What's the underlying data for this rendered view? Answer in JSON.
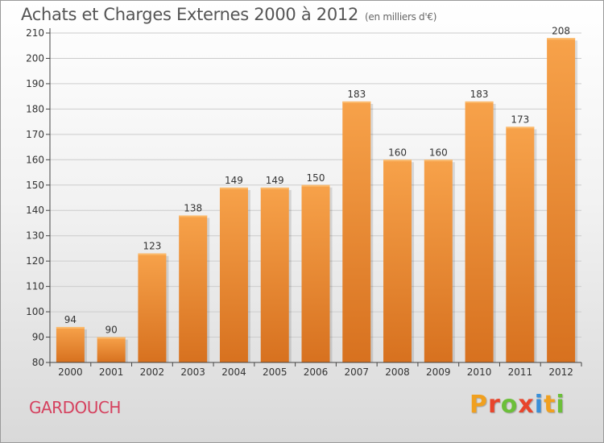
{
  "title": "Achats et Charges Externes 2000 à 2012",
  "subtitle": "(en milliers d'€)",
  "city": "GARDOUCH",
  "logo": {
    "letters": [
      "P",
      "r",
      "o",
      "x",
      "i",
      "t",
      "i"
    ],
    "colors": [
      "#f0a020",
      "#e8452c",
      "#6cbf3a",
      "#e8452c",
      "#3a8fd8",
      "#f0a020",
      "#6cbf3a"
    ]
  },
  "colors": {
    "bar_top": "#f7a24a",
    "bar_bottom": "#d7711f",
    "grid": "#cccccc",
    "axis": "#444444"
  },
  "chart_data": {
    "type": "bar",
    "title": "Achats et Charges Externes 2000 à 2012",
    "subtitle": "(en milliers d'€)",
    "xlabel": "",
    "ylabel": "",
    "categories": [
      "2000",
      "2001",
      "2002",
      "2003",
      "2004",
      "2005",
      "2006",
      "2007",
      "2008",
      "2009",
      "2010",
      "2011",
      "2012"
    ],
    "values": [
      94,
      90,
      123,
      138,
      149,
      149,
      150,
      183,
      160,
      160,
      183,
      173,
      208
    ],
    "ylim": [
      80,
      210
    ],
    "yticks": [
      80,
      90,
      100,
      110,
      120,
      130,
      140,
      150,
      160,
      170,
      180,
      190,
      200,
      210
    ],
    "grid": true
  }
}
